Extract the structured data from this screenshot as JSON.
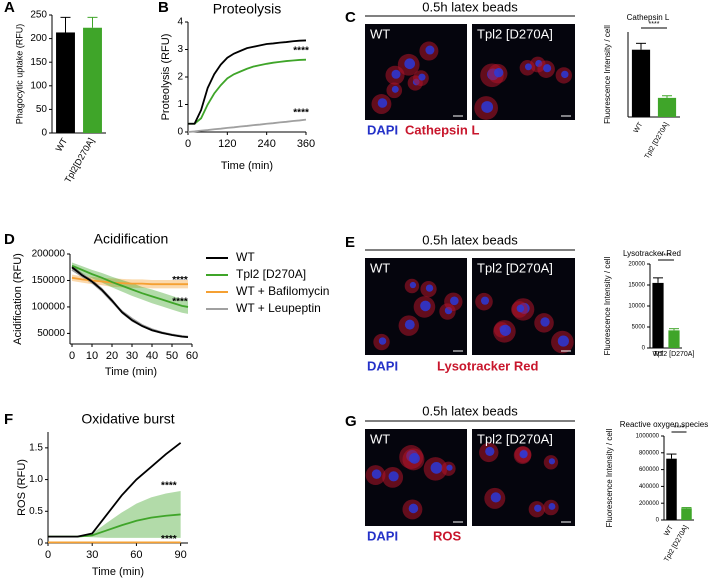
{
  "chart_data": [
    {
      "panel": "A",
      "type": "bar",
      "ylabel": "Phagocytic uptake (RFU)",
      "categories": [
        "WT",
        "Tpl2[D270A]"
      ],
      "values": [
        213,
        223
      ],
      "errors": [
        32,
        22
      ],
      "colors": [
        "#000000",
        "#3fa529"
      ],
      "ylim": [
        0,
        250
      ],
      "yticks": [
        0,
        50,
        100,
        150,
        200,
        250
      ]
    },
    {
      "panel": "B",
      "type": "line",
      "title": "Proteolysis",
      "xlabel": "Time (min)",
      "ylabel": "Proteolysis (RFU)",
      "x": [
        0,
        20,
        40,
        60,
        80,
        100,
        120,
        140,
        160,
        180,
        200,
        220,
        240,
        260,
        280,
        300,
        320,
        340,
        360
      ],
      "series": [
        {
          "color": "#000000",
          "values": [
            0.3,
            0.3,
            0.8,
            1.6,
            2.1,
            2.45,
            2.7,
            2.85,
            2.95,
            3.05,
            3.1,
            3.15,
            3.2,
            3.22,
            3.25,
            3.27,
            3.3,
            3.32,
            3.33
          ]
        },
        {
          "color": "#3fa529",
          "values": [
            0.3,
            0.3,
            0.5,
            1.0,
            1.4,
            1.7,
            1.95,
            2.1,
            2.2,
            2.3,
            2.38,
            2.43,
            2.48,
            2.52,
            2.55,
            2.58,
            2.6,
            2.62,
            2.63
          ]
        },
        {
          "color": "#a0a0a0",
          "values": [
            0,
            0.02,
            0.05,
            0.07,
            0.1,
            0.12,
            0.15,
            0.17,
            0.2,
            0.22,
            0.25,
            0.27,
            0.3,
            0.32,
            0.35,
            0.37,
            0.4,
            0.42,
            0.45
          ]
        }
      ],
      "xlim": [
        0,
        360
      ],
      "xticks": [
        0,
        120,
        240,
        360
      ],
      "ylim": [
        0,
        4
      ],
      "yticks": [
        0,
        1,
        2,
        3,
        4
      ],
      "annotations": [
        {
          "text": "****",
          "x": 345,
          "y": 2.95
        },
        {
          "text": "****",
          "x": 345,
          "y": 0.7
        }
      ]
    },
    {
      "panel": "C",
      "type": "bar",
      "title": "Cathepsin L",
      "ylabel": "Fluorescence Intensity / cell",
      "categories": [
        "WT",
        "Tpl2 [D270A]"
      ],
      "values": [
        9.5,
        2.7
      ],
      "errors": [
        0.9,
        0.3
      ],
      "colors": [
        "#000000",
        "#3fa529"
      ],
      "ylim": [
        0,
        12
      ],
      "significance": "****"
    },
    {
      "panel": "D",
      "type": "line",
      "title": "Acidification",
      "xlabel": "Time (min)",
      "ylabel": "Acidification (RFU)",
      "x": [
        0,
        5,
        10,
        15,
        20,
        25,
        30,
        35,
        40,
        45,
        50,
        55,
        58
      ],
      "series": [
        {
          "name": "WT",
          "color": "#000000",
          "values": [
            175000,
            160000,
            148000,
            132000,
            112000,
            90000,
            75000,
            64000,
            56000,
            51000,
            47000,
            44000,
            43000
          ],
          "errors": [
            4000,
            4000,
            4000,
            4000,
            4000,
            3000,
            3000,
            2000,
            2000,
            2000,
            1500,
            1500,
            1500
          ]
        },
        {
          "name": "Tpl2 [D270A]",
          "color": "#3fa529",
          "values": [
            178000,
            170000,
            162000,
            155000,
            147000,
            140000,
            133000,
            126000,
            120000,
            114000,
            108000,
            102000,
            100000
          ],
          "errors": [
            6000,
            7000,
            8000,
            9000,
            10000,
            11000,
            12000,
            12000,
            13000,
            13000,
            13000,
            13000,
            13000
          ]
        },
        {
          "name": "WT + Bafilomycin",
          "color": "#f5a032",
          "values": [
            155000,
            152000,
            150000,
            148000,
            146000,
            145000,
            144000,
            144000,
            143000,
            143000,
            143000,
            143000,
            143000
          ],
          "errors": [
            6000,
            6000,
            7000,
            7000,
            8000,
            8000,
            8000,
            8000,
            8000,
            8000,
            8000,
            8000,
            8000
          ]
        },
        {
          "name": "WT + Leupeptin",
          "color": "#a0a0a0",
          "values": [
            170000,
            158000,
            146000,
            130000,
            110000,
            92000,
            78000,
            66000,
            58000,
            52000,
            48000,
            45000,
            44000
          ]
        }
      ],
      "xlim": [
        -1,
        60
      ],
      "xticks": [
        0,
        10,
        20,
        30,
        40,
        50,
        60
      ],
      "ylim": [
        30000,
        200000
      ],
      "yticks": [
        50000,
        100000,
        150000,
        200000
      ],
      "legend": "right",
      "annotations": [
        {
          "text": "****",
          "x": 54,
          "y": 150000
        },
        {
          "text": "****",
          "x": 54,
          "y": 110000
        }
      ]
    },
    {
      "panel": "E",
      "type": "bar",
      "title": "Lysotracker Red",
      "ylabel": "Fluorescence Intensity / cell",
      "categories": [
        "WT",
        "Tpl2 [D270A]"
      ],
      "values": [
        15500,
        4200
      ],
      "errors": [
        1200,
        400
      ],
      "colors": [
        "#000000",
        "#3fa529"
      ],
      "ylim": [
        0,
        20000
      ],
      "yticks": [
        0,
        5000,
        10000,
        15000,
        20000
      ],
      "significance": "****"
    },
    {
      "panel": "F",
      "type": "line",
      "title": "Oxidative burst",
      "xlabel": "Time (min)",
      "ylabel": "ROS (RFU)",
      "x": [
        0,
        10,
        20,
        30,
        40,
        50,
        60,
        70,
        80,
        90
      ],
      "series": [
        {
          "color": "#000000",
          "values": [
            0.1,
            0.1,
            0.1,
            0.15,
            0.45,
            0.75,
            1.0,
            1.2,
            1.4,
            1.58
          ]
        },
        {
          "color": "#3fa529",
          "values": [
            0.1,
            0.1,
            0.1,
            0.12,
            0.2,
            0.28,
            0.35,
            0.4,
            0.43,
            0.45
          ],
          "errors": [
            0,
            0,
            0,
            0.03,
            0.12,
            0.2,
            0.27,
            0.32,
            0.35,
            0.37
          ]
        },
        {
          "color": "#f5a032",
          "values": [
            0.01,
            0.01,
            0.01,
            0.01,
            0.01,
            0.01,
            0.01,
            0.01,
            0.01,
            0.01
          ]
        }
      ],
      "xlim": [
        0,
        95
      ],
      "xticks": [
        0,
        30,
        60,
        90
      ],
      "ylim": [
        0,
        1.75
      ],
      "yticks": [
        0,
        0.5,
        {
          "value": 1,
          "label": "1.0"
        },
        1.5
      ],
      "annotations": [
        {
          "text": "****",
          "x": 82,
          "y": 0.9
        },
        {
          "text": "****",
          "x": 82,
          "y": 0.06
        }
      ]
    },
    {
      "panel": "G",
      "type": "bar",
      "title": "Reactive oxygen species",
      "ylabel": "Fluorescence Intensity / cell",
      "categories": [
        "WT",
        "Tpl2 [D270A]"
      ],
      "values": [
        730000,
        140000
      ],
      "errors": [
        55000,
        8000
      ],
      "colors": [
        "#000000",
        "#3fa529"
      ],
      "ylim": [
        0,
        1000000
      ],
      "yticks": [
        0,
        200000,
        400000,
        600000,
        800000,
        1000000
      ],
      "significance": "****"
    }
  ],
  "micrographs": [
    {
      "header": "0.5h latex beads",
      "labels": [
        "WT",
        "Tpl2 [D270A]"
      ],
      "stains": [
        "DAPI",
        "Cathepsin L"
      ]
    },
    {
      "header": "0.5h latex beads",
      "labels": [
        "WT",
        "Tpl2 [D270A]"
      ],
      "stains": [
        "DAPI",
        "Lysotracker Red"
      ]
    },
    {
      "header": "0.5h latex beads",
      "labels": [
        "WT",
        "Tpl2 [D270A]"
      ],
      "stains": [
        "DAPI",
        "ROS"
      ]
    }
  ]
}
